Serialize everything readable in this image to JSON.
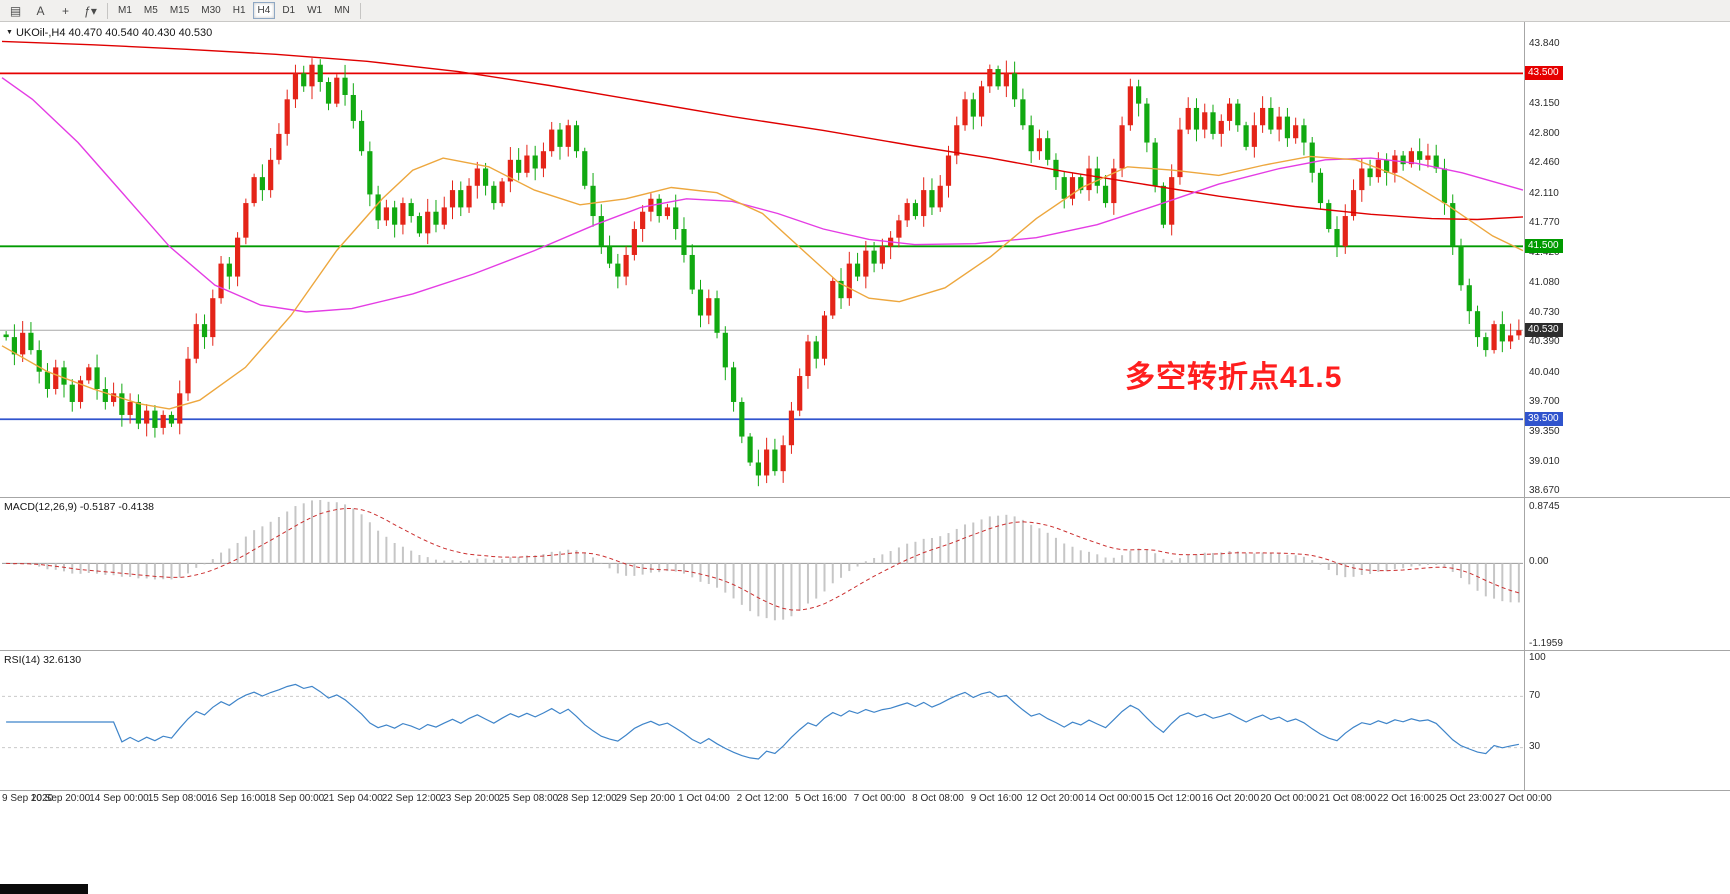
{
  "toolbar": {
    "icons": [
      {
        "name": "chart-window-icon",
        "glyph": "▤"
      },
      {
        "name": "cursor-icon",
        "glyph": "A"
      },
      {
        "name": "crosshair-icon",
        "glyph": "+"
      },
      {
        "name": "indicators-icon",
        "glyph": "ƒ▾"
      }
    ],
    "timeframes": [
      "M1",
      "M5",
      "M15",
      "M30",
      "H1",
      "H4",
      "D1",
      "W1",
      "MN"
    ],
    "active_timeframe": "H4"
  },
  "chart": {
    "symbol_info": "UKOil-,H4 40.470 40.540 40.430 40.530",
    "dropdown_triangle": "▼",
    "annotation": {
      "text": "多空转折点41.5",
      "color": "#ff1e1e"
    },
    "hlines": [
      {
        "price": 43.5,
        "label": "43.500",
        "color": "#e60000"
      },
      {
        "price": 41.5,
        "label": "41.500",
        "color": "#009a00"
      },
      {
        "price": 39.5,
        "label": "39.500",
        "color": "#3054cd"
      }
    ],
    "current_price": {
      "value": 40.53,
      "label": "40.530",
      "line_color": "#a8a8a8",
      "badge_color": "#2d2d2d"
    },
    "price_ticks": [
      "43.840",
      "43.150",
      "42.800",
      "42.460",
      "42.110",
      "41.770",
      "41.420",
      "41.080",
      "40.730",
      "40.390",
      "40.040",
      "39.700",
      "39.350",
      "39.010",
      "38.670"
    ]
  },
  "chart_data": {
    "type": "candlestick",
    "symbol": "UKOil",
    "timeframe": "H4",
    "ohlc_display": {
      "open": "40.470",
      "high": "40.540",
      "low": "40.430",
      "close": "40.530"
    },
    "up_color": "#e42418",
    "down_color": "#11a911",
    "price_axis": {
      "min": 38.601,
      "max": 44.094
    },
    "closes": [
      40.45,
      40.25,
      40.5,
      40.3,
      40.05,
      39.85,
      40.1,
      39.9,
      39.7,
      39.95,
      40.1,
      39.85,
      39.7,
      39.8,
      39.55,
      39.7,
      39.45,
      39.6,
      39.4,
      39.55,
      39.45,
      39.8,
      40.2,
      40.6,
      40.45,
      40.9,
      41.3,
      41.15,
      41.6,
      42.0,
      42.3,
      42.15,
      42.5,
      42.8,
      43.2,
      43.5,
      43.35,
      43.6,
      43.4,
      43.15,
      43.45,
      43.25,
      42.95,
      42.6,
      42.1,
      41.8,
      41.95,
      41.75,
      42.0,
      41.85,
      41.65,
      41.9,
      41.75,
      41.95,
      42.15,
      41.95,
      42.2,
      42.4,
      42.2,
      42.0,
      42.25,
      42.5,
      42.35,
      42.55,
      42.4,
      42.6,
      42.85,
      42.65,
      42.9,
      42.6,
      42.2,
      41.85,
      41.5,
      41.3,
      41.15,
      41.4,
      41.7,
      41.9,
      42.05,
      41.85,
      41.95,
      41.7,
      41.4,
      41.0,
      40.7,
      40.9,
      40.5,
      40.1,
      39.7,
      39.3,
      39.0,
      38.85,
      39.15,
      38.9,
      39.2,
      39.6,
      40.0,
      40.4,
      40.2,
      40.7,
      41.1,
      40.9,
      41.3,
      41.15,
      41.45,
      41.3,
      41.5,
      41.6,
      41.8,
      42.0,
      41.85,
      42.15,
      41.95,
      42.2,
      42.55,
      42.9,
      43.2,
      43.0,
      43.35,
      43.55,
      43.35,
      43.5,
      43.2,
      42.9,
      42.6,
      42.75,
      42.5,
      42.3,
      42.05,
      42.3,
      42.15,
      42.4,
      42.2,
      42.0,
      42.4,
      42.9,
      43.35,
      43.15,
      42.7,
      42.2,
      41.75,
      42.3,
      42.85,
      43.1,
      42.85,
      43.05,
      42.8,
      42.95,
      43.15,
      42.9,
      42.65,
      42.9,
      43.1,
      42.85,
      43.0,
      42.75,
      42.9,
      42.7,
      42.35,
      42.0,
      41.7,
      41.5,
      41.85,
      42.15,
      42.4,
      42.3,
      42.5,
      42.35,
      42.55,
      42.45,
      42.6,
      42.5,
      42.55,
      42.4,
      42.0,
      41.5,
      41.05,
      40.75,
      40.45,
      40.3,
      40.6,
      40.4,
      40.47,
      40.53
    ],
    "moving_averages": [
      {
        "name": "ma-slow",
        "color": "#df0000",
        "points": [
          [
            0,
            43.87
          ],
          [
            0.06,
            43.83
          ],
          [
            0.12,
            43.78
          ],
          [
            0.18,
            43.72
          ],
          [
            0.24,
            43.64
          ],
          [
            0.3,
            43.52
          ],
          [
            0.36,
            43.36
          ],
          [
            0.42,
            43.18
          ],
          [
            0.48,
            43.0
          ],
          [
            0.54,
            42.84
          ],
          [
            0.6,
            42.66
          ],
          [
            0.65,
            42.52
          ],
          [
            0.7,
            42.36
          ],
          [
            0.75,
            42.22
          ],
          [
            0.8,
            42.08
          ],
          [
            0.85,
            41.96
          ],
          [
            0.9,
            41.87
          ],
          [
            0.94,
            41.82
          ],
          [
            0.97,
            41.81
          ],
          [
            1,
            41.84
          ]
        ]
      },
      {
        "name": "ma-medium",
        "color": "#e43ce4",
        "points": [
          [
            0,
            43.45
          ],
          [
            0.02,
            43.2
          ],
          [
            0.05,
            42.7
          ],
          [
            0.08,
            42.1
          ],
          [
            0.11,
            41.5
          ],
          [
            0.14,
            41.05
          ],
          [
            0.17,
            40.82
          ],
          [
            0.2,
            40.74
          ],
          [
            0.23,
            40.78
          ],
          [
            0.27,
            40.95
          ],
          [
            0.31,
            41.18
          ],
          [
            0.35,
            41.45
          ],
          [
            0.39,
            41.75
          ],
          [
            0.42,
            41.95
          ],
          [
            0.45,
            42.05
          ],
          [
            0.48,
            42.02
          ],
          [
            0.51,
            41.88
          ],
          [
            0.54,
            41.7
          ],
          [
            0.57,
            41.58
          ],
          [
            0.6,
            41.52
          ],
          [
            0.64,
            41.53
          ],
          [
            0.68,
            41.6
          ],
          [
            0.72,
            41.75
          ],
          [
            0.76,
            41.98
          ],
          [
            0.8,
            42.22
          ],
          [
            0.84,
            42.4
          ],
          [
            0.87,
            42.5
          ],
          [
            0.9,
            42.52
          ],
          [
            0.93,
            42.46
          ],
          [
            0.96,
            42.35
          ],
          [
            1,
            42.15
          ]
        ]
      },
      {
        "name": "ma-fast",
        "color": "#eda73e",
        "points": [
          [
            0,
            40.35
          ],
          [
            0.03,
            40.05
          ],
          [
            0.06,
            39.85
          ],
          [
            0.09,
            39.68
          ],
          [
            0.11,
            39.62
          ],
          [
            0.13,
            39.72
          ],
          [
            0.16,
            40.1
          ],
          [
            0.19,
            40.7
          ],
          [
            0.22,
            41.45
          ],
          [
            0.25,
            42.05
          ],
          [
            0.27,
            42.38
          ],
          [
            0.29,
            42.52
          ],
          [
            0.32,
            42.42
          ],
          [
            0.35,
            42.15
          ],
          [
            0.38,
            41.98
          ],
          [
            0.41,
            42.05
          ],
          [
            0.44,
            42.18
          ],
          [
            0.47,
            42.12
          ],
          [
            0.5,
            41.88
          ],
          [
            0.53,
            41.4
          ],
          [
            0.55,
            41.08
          ],
          [
            0.57,
            40.9
          ],
          [
            0.59,
            40.86
          ],
          [
            0.62,
            41.02
          ],
          [
            0.65,
            41.38
          ],
          [
            0.68,
            41.82
          ],
          [
            0.71,
            42.18
          ],
          [
            0.74,
            42.42
          ],
          [
            0.77,
            42.38
          ],
          [
            0.8,
            42.32
          ],
          [
            0.83,
            42.44
          ],
          [
            0.86,
            42.54
          ],
          [
            0.89,
            42.5
          ],
          [
            0.92,
            42.3
          ],
          [
            0.95,
            41.98
          ],
          [
            0.98,
            41.62
          ],
          [
            1,
            41.45
          ]
        ]
      }
    ],
    "indicators": [
      {
        "name": "MACD",
        "label": "MACD(12,26,9) -0.5187 -0.4138",
        "params": [
          12,
          26,
          9
        ],
        "current_values": [
          "-0.5187",
          "-0.4138"
        ],
        "scale": {
          "max": "0.8745",
          "zero": "0.00",
          "min": "-1.1959"
        },
        "histogram_color": "#c6c6c6",
        "signal_color": "#cb2f2f"
      },
      {
        "name": "RSI",
        "label": "RSI(14) 32.6130",
        "period": 14,
        "current_value": "32.6130",
        "scale": [
          "100",
          "70",
          "30"
        ],
        "levels": [
          70,
          30
        ],
        "color": "#3e84c9"
      }
    ],
    "time_labels": [
      "9 Sep 2020",
      "10 Sep 20:00",
      "14 Sep 00:00",
      "15 Sep 08:00",
      "16 Sep 16:00",
      "18 Sep 00:00",
      "21 Sep 04:00",
      "22 Sep 12:00",
      "23 Sep 20:00",
      "25 Sep 08:00",
      "28 Sep 12:00",
      "29 Sep 20:00",
      "1 Oct 04:00",
      "2 Oct 12:00",
      "5 Oct 16:00",
      "7 Oct 00:00",
      "8 Oct 08:00",
      "9 Oct 16:00",
      "12 Oct 20:00",
      "14 Oct 00:00",
      "15 Oct 12:00",
      "16 Oct 20:00",
      "20 Oct 00:00",
      "21 Oct 08:00",
      "22 Oct 16:00",
      "25 Oct 23:00",
      "27 Oct 00:00"
    ]
  }
}
